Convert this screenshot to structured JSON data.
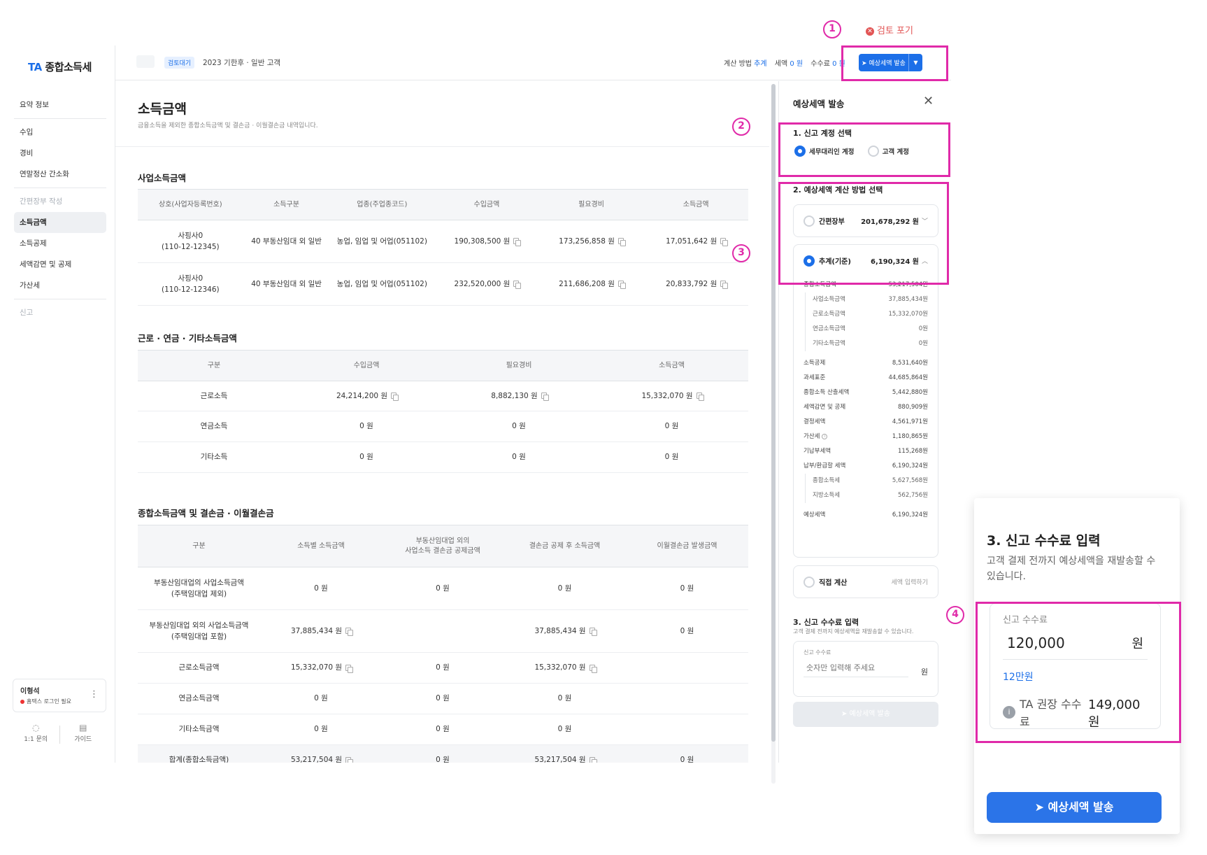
{
  "app": {
    "logo_ta": "TA",
    "logo_rest": " 종합소득세"
  },
  "sidebar": {
    "items": [
      {
        "label": "요약 정보"
      },
      {
        "label": "수입"
      },
      {
        "label": "경비"
      },
      {
        "label": "연말정산 간소화"
      },
      {
        "label": "간편장부 작성"
      },
      {
        "label": "소득금액"
      },
      {
        "label": "소득공제"
      },
      {
        "label": "세액감면 및 공제"
      },
      {
        "label": "가산세"
      },
      {
        "label": "신고"
      }
    ],
    "user": {
      "name": "이형석",
      "status": "홈택스 로그인 필요"
    },
    "help": {
      "inquiry": "1:1 문의",
      "guide": "가이드"
    }
  },
  "header": {
    "badge": "검토대기",
    "title": "2023 기한후 · 일반 고객",
    "calc_method_label": "계산 방법",
    "calc_method_value": "추계",
    "tax_label": "세액",
    "tax_value": "0 원",
    "fee_label": "수수료",
    "fee_value": "0 원",
    "send_button": "예상세액 발송",
    "abandon": "검토 포기"
  },
  "main": {
    "title": "소득금액",
    "description": "금융소득을 제외한 종합소득금액 및 결손금 · 이월결손금 내역입니다.",
    "business": {
      "title": "사업소득금액",
      "headers": [
        "상호(사업자등록번호)",
        "소득구분",
        "업종(주업종코드)",
        "수입금액",
        "필요경비",
        "소득금액"
      ],
      "rows": [
        {
          "name": "사핑사0",
          "reg": "(110-12-12345)",
          "type": "40 부동산임대 외 일반",
          "industry": "농업, 임업 및 어업(051102)",
          "revenue": "190,308,500 원",
          "expense": "173,256,858 원",
          "income": "17,051,642 원"
        },
        {
          "name": "사핑사0",
          "reg": "(110-12-12346)",
          "type": "40 부동산임대 외 일반",
          "industry": "농업, 임업 및 어업(051102)",
          "revenue": "232,520,000 원",
          "expense": "211,686,208 원",
          "income": "20,833,792 원"
        }
      ]
    },
    "labor": {
      "title": "근로 · 연금 · 기타소득금액",
      "headers": [
        "구분",
        "수입금액",
        "필요경비",
        "소득금액"
      ],
      "rows": [
        {
          "type": "근로소득",
          "revenue": "24,214,200 원",
          "expense": "8,882,130 원",
          "income": "15,332,070 원"
        },
        {
          "type": "연금소득",
          "revenue": "0 원",
          "expense": "0 원",
          "income": "0 원"
        },
        {
          "type": "기타소득",
          "revenue": "0 원",
          "expense": "0 원",
          "income": "0 원"
        }
      ]
    },
    "total": {
      "title": "종합소득금액 및 결손금 · 이월결손금",
      "headers": [
        "구분",
        "소득별 소득금액",
        "부동산임대업 외의",
        "사업소득 결손금 공제금액",
        "결손금 공제 후 소득금액",
        "이월결손금 발생금액"
      ],
      "rows": [
        {
          "c1": "부동산임대업의 사업소득금액",
          "c1b": "(주택임대업 제외)",
          "c2": "0 원",
          "c3": "0 원",
          "c4": "0 원",
          "c5": "0 원"
        },
        {
          "c1": "부동산임대업 외의 사업소득금액",
          "c1b": "(주택임대업 포함)",
          "c2": "37,885,434 원",
          "c3": "",
          "c4": "37,885,434 원",
          "c5": "0 원"
        },
        {
          "c1": "근로소득금액",
          "c1b": "",
          "c2": "15,332,070 원",
          "c3": "0 원",
          "c4": "15,332,070 원",
          "c5": ""
        },
        {
          "c1": "연금소득금액",
          "c1b": "",
          "c2": "0 원",
          "c3": "0 원",
          "c4": "0 원",
          "c5": ""
        },
        {
          "c1": "기타소득금액",
          "c1b": "",
          "c2": "0 원",
          "c3": "0 원",
          "c4": "0 원",
          "c5": ""
        },
        {
          "c1": "합계(종합소득금액)",
          "c1b": "",
          "c2": "53,217,504 원",
          "c3": "0 원",
          "c4": "53,217,504 원",
          "c5": "0 원"
        }
      ]
    }
  },
  "panel": {
    "title": "예상세액 발송",
    "step1": {
      "title": "1. 신고 계정 선택",
      "opt1": "세무대리인 계정",
      "opt2": "고객 계정"
    },
    "step2": {
      "title": "2. 예상세액 계산 방법 선택",
      "simple_label": "간편장부",
      "simple_amount": "201,678,292 원",
      "estimate_label": "추계(기준)",
      "estimate_amount": "6,190,324 원",
      "breakdown": [
        {
          "label": "종합소득금액",
          "value": "53,217,504원"
        },
        {
          "label": "사업소득금액",
          "value": "37,885,434원"
        },
        {
          "label": "근로소득금액",
          "value": "15,332,070원"
        },
        {
          "label": "연금소득금액",
          "value": "0원"
        },
        {
          "label": "기타소득금액",
          "value": "0원"
        },
        {
          "label": "소득공제",
          "value": "8,531,640원"
        },
        {
          "label": "과세표준",
          "value": "44,685,864원"
        },
        {
          "label": "종합소득 산출세액",
          "value": "5,442,880원"
        },
        {
          "label": "세액감면 및 공제",
          "value": "880,909원"
        },
        {
          "label": "결정세액",
          "value": "4,561,971원"
        },
        {
          "label": "가산세",
          "value": "1,180,865원"
        },
        {
          "label": "기납부세액",
          "value": "115,268원"
        },
        {
          "label": "납부/환급할 세액",
          "value": "6,190,324원"
        },
        {
          "label": "종합소득세",
          "value": "5,627,568원"
        },
        {
          "label": "지방소득세",
          "value": "562,756원"
        },
        {
          "label": "예상세액",
          "value": "6,190,324원"
        }
      ],
      "direct_label": "직접 계산",
      "direct_hint": "세액 입력하기"
    },
    "step3": {
      "title": "3. 신고 수수료 입력",
      "desc": "고객 결제 전까지 예상세액을 재발송할 수 있습니다.",
      "field_label": "신고 수수료",
      "placeholder": "숫자만 입력해 주세요",
      "unit": "원"
    },
    "send_button": "예상세액 발송"
  },
  "zoom": {
    "title": "3. 신고 수수료 입력",
    "desc": "고객 결제 전까지 예상세액을 재발송할 수 있습니다.",
    "field_label": "신고 수수료",
    "value": "120,000",
    "unit": "원",
    "korean": "12만원",
    "rec_label": "TA 권장 수수료",
    "rec_value": "149,000 원",
    "send_button": "예상세액 발송"
  },
  "annotations": {
    "n1": "1",
    "n2": "2",
    "n3": "3",
    "n4": "4",
    "color": "#e02aa9"
  }
}
